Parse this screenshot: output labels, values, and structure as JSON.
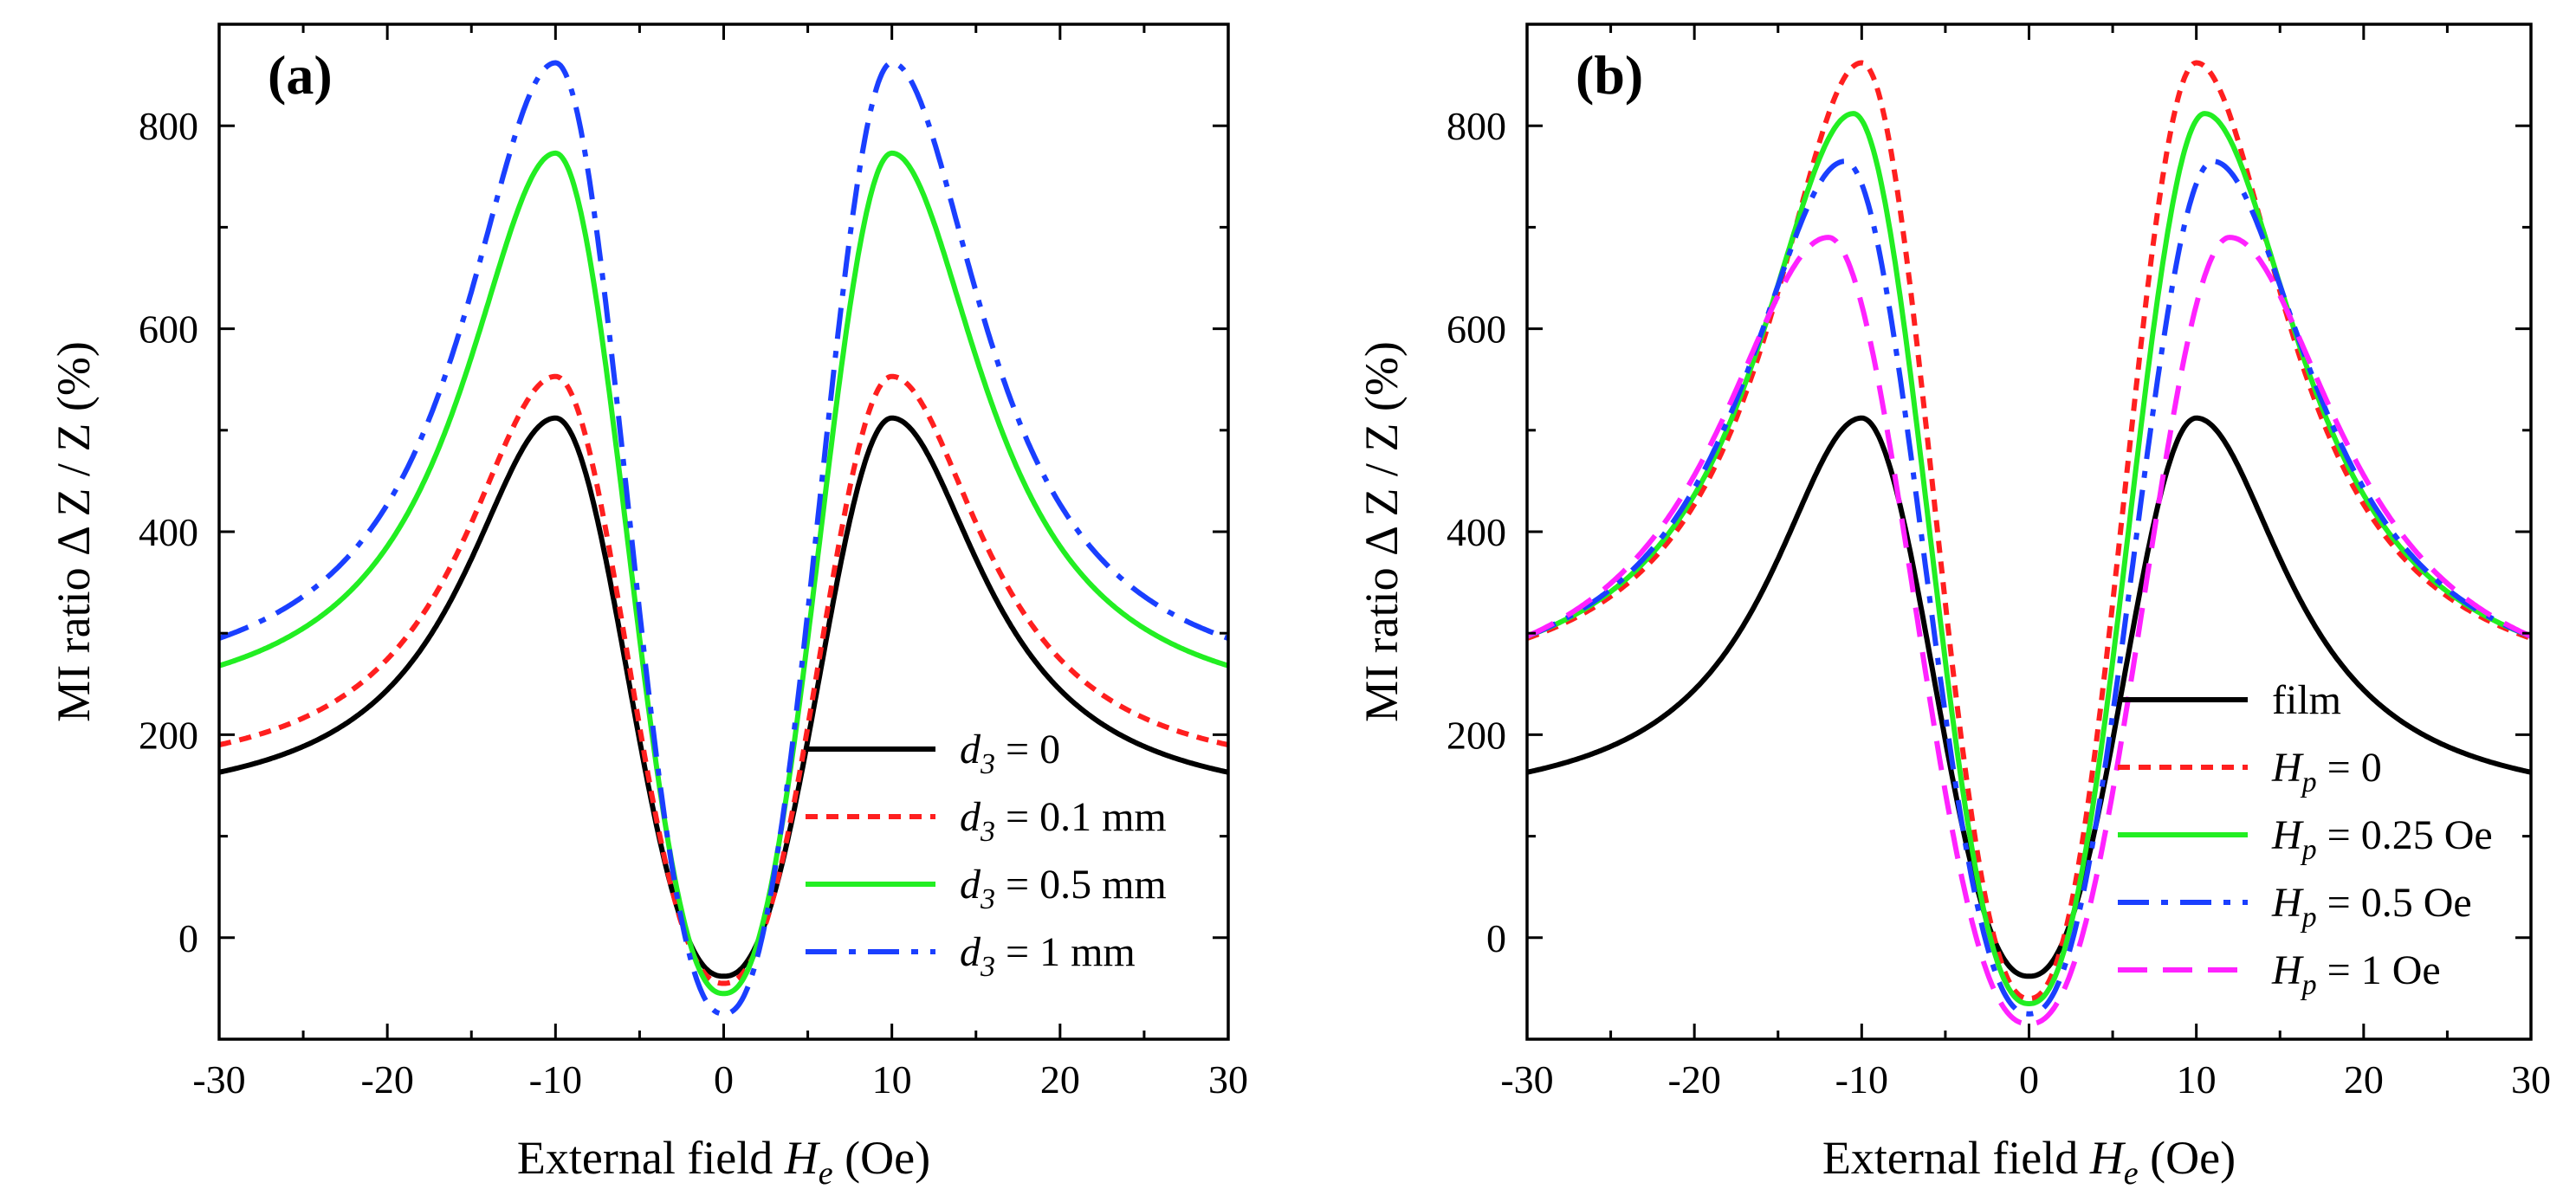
{
  "figure": {
    "panels": [
      "(a)",
      "(b)"
    ]
  },
  "colors": {
    "black": "#000000",
    "red": "#ff1f1f",
    "green": "#22ee22",
    "blue": "#1a3fff",
    "magenta": "#ff22ff"
  },
  "chart_data": [
    {
      "type": "line",
      "panel_label": "(a)",
      "title": "",
      "xlabel": {
        "prefix": "External field ",
        "var": "H",
        "sub": "e",
        "suffix": "  (Oe)"
      },
      "ylabel": "MI ratio Δ Z / Z  (%)",
      "xlim": [
        -30,
        30
      ],
      "ylim": [
        -100,
        900
      ],
      "xticks": [
        -30,
        -20,
        -10,
        0,
        10,
        20,
        30
      ],
      "yticks": [
        0,
        200,
        400,
        600,
        800
      ],
      "legend_position": "lower-right",
      "series": [
        {
          "name": "d3 = 0",
          "label": {
            "var": "d",
            "sub": "3",
            "text": " = 0"
          },
          "color": "black",
          "style": "solid",
          "edge": 163,
          "peak": 512,
          "peak_x": 10,
          "center": -38
        },
        {
          "name": "d3 = 0.1 mm",
          "label": {
            "var": "d",
            "sub": "3",
            "text": " = 0.1 mm"
          },
          "color": "red",
          "style": "dot",
          "edge": 190,
          "peak": 553,
          "peak_x": 10,
          "center": -45
        },
        {
          "name": "d3 = 0.5 mm",
          "label": {
            "var": "d",
            "sub": "3",
            "text": " = 0.5 mm"
          },
          "color": "green",
          "style": "solid",
          "edge": 268,
          "peak": 773,
          "peak_x": 10,
          "center": -55
        },
        {
          "name": "d3 = 1 mm",
          "label": {
            "var": "d",
            "sub": "3",
            "text": " = 1 mm"
          },
          "color": "blue",
          "style": "dashdot",
          "edge": 295,
          "peak": 862,
          "peak_x": 10,
          "center": -75
        }
      ]
    },
    {
      "type": "line",
      "panel_label": "(b)",
      "title": "",
      "xlabel": {
        "prefix": "External field ",
        "var": "H",
        "sub": "e",
        "suffix": "  (Oe)"
      },
      "ylabel": "MI ratio Δ Z / Z  (%)",
      "xlim": [
        -30,
        30
      ],
      "ylim": [
        -100,
        900
      ],
      "xticks": [
        -30,
        -20,
        -10,
        0,
        10,
        20,
        30
      ],
      "yticks": [
        0,
        200,
        400,
        600,
        800
      ],
      "legend_position": "lower-right",
      "series": [
        {
          "name": "film",
          "label": {
            "var": "",
            "sub": "",
            "text": "film"
          },
          "color": "black",
          "style": "solid",
          "edge": 163,
          "peak": 512,
          "peak_x": 10,
          "center": -38
        },
        {
          "name": "Hp = 0",
          "label": {
            "var": "H",
            "sub": "p",
            "text": " = 0"
          },
          "color": "red",
          "style": "dot",
          "edge": 295,
          "peak": 862,
          "peak_x": 10,
          "center": -60
        },
        {
          "name": "Hp = 0.25 Oe",
          "label": {
            "var": "H",
            "sub": "p",
            "text": " = 0.25 Oe"
          },
          "color": "green",
          "style": "solid",
          "edge": 297,
          "peak": 812,
          "peak_x": 10.5,
          "center": -65
        },
        {
          "name": "Hp = 0.5 Oe",
          "label": {
            "var": "H",
            "sub": "p",
            "text": " = 0.5 Oe"
          },
          "color": "blue",
          "style": "dashdot",
          "edge": 297,
          "peak": 765,
          "peak_x": 11,
          "center": -75
        },
        {
          "name": "Hp = 1 Oe",
          "label": {
            "var": "H",
            "sub": "p",
            "text": " = 1 Oe"
          },
          "color": "magenta",
          "style": "dash",
          "edge": 297,
          "peak": 690,
          "peak_x": 12,
          "center": -85
        }
      ]
    }
  ]
}
